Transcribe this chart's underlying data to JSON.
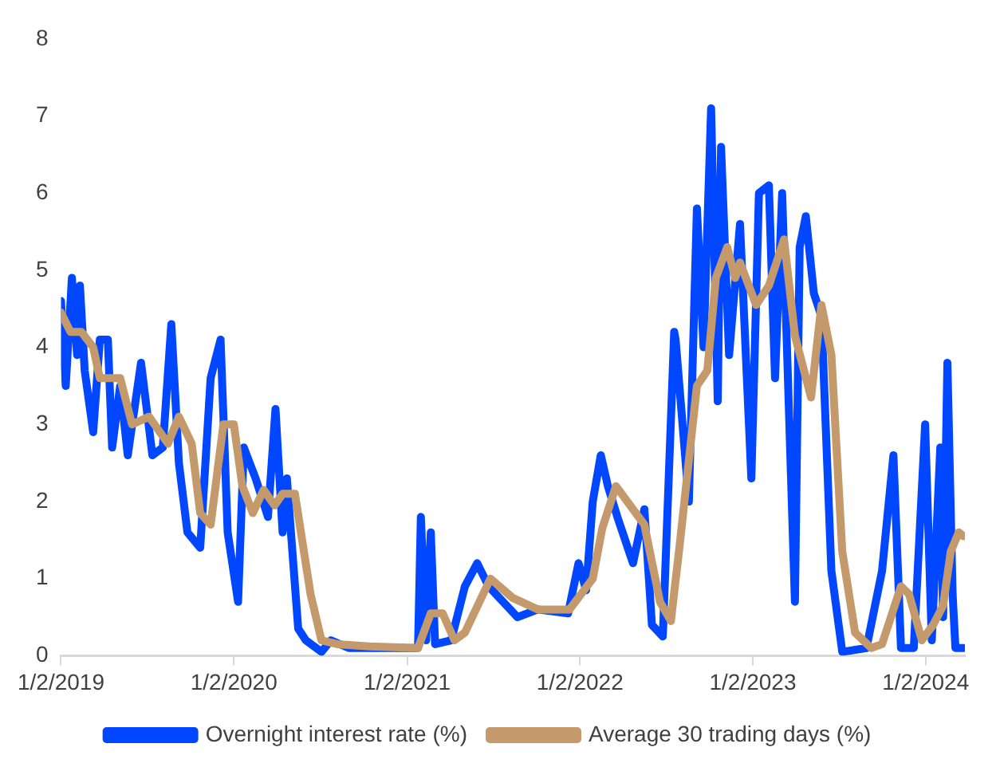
{
  "chart_data": {
    "type": "line",
    "xlim": [
      "2019-01-02",
      "2024-03-25"
    ],
    "xticks": [
      {
        "value": "2019-01-02",
        "label": "1/2/2019"
      },
      {
        "value": "2020-01-02",
        "label": "1/2/2020"
      },
      {
        "value": "2021-01-02",
        "label": "1/2/2021"
      },
      {
        "value": "2022-01-02",
        "label": "1/2/2022"
      },
      {
        "value": "2023-01-02",
        "label": "1/2/2023"
      },
      {
        "value": "2024-01-02",
        "label": "1/2/2024"
      }
    ],
    "ylim": [
      0,
      8
    ],
    "yticks": [
      0,
      1,
      2,
      3,
      4,
      5,
      6,
      7,
      8
    ],
    "grid": false,
    "legend": "bottom",
    "marker": "none",
    "line_style": "solid",
    "series": [
      {
        "name": "Overnight interest rate (%)",
        "color": "#0047ff",
        "x": [
          "2019-01-02",
          "2019-01-12",
          "2019-01-25",
          "2019-02-05",
          "2019-02-11",
          "2019-02-21",
          "2019-03-11",
          "2019-03-25",
          "2019-04-11",
          "2019-04-20",
          "2019-05-07",
          "2019-05-23",
          "2019-06-20",
          "2019-07-14",
          "2019-08-05",
          "2019-08-23",
          "2019-09-08",
          "2019-09-26",
          "2019-10-23",
          "2019-11-14",
          "2019-12-05",
          "2019-12-20",
          "2020-01-11",
          "2020-01-23",
          "2020-02-17",
          "2020-03-14",
          "2020-03-30",
          "2020-04-14",
          "2020-04-23",
          "2020-05-17",
          "2020-06-02",
          "2020-07-05",
          "2020-07-25",
          "2020-09-01",
          "2021-01-25",
          "2021-01-31",
          "2021-02-11",
          "2021-02-21",
          "2021-03-02",
          "2021-04-05",
          "2021-05-04",
          "2021-05-30",
          "2021-06-23",
          "2021-08-23",
          "2021-10-05",
          "2021-12-08",
          "2021-12-30",
          "2022-01-15",
          "2022-01-29",
          "2022-02-15",
          "2022-03-02",
          "2022-03-22",
          "2022-04-24",
          "2022-05-18",
          "2022-06-03",
          "2022-06-26",
          "2022-07-20",
          "2022-07-23",
          "2022-08-20",
          "2022-09-06",
          "2022-09-20",
          "2022-10-06",
          "2022-10-20",
          "2022-10-27",
          "2022-11-13",
          "2022-12-06",
          "2022-12-30",
          "2023-01-15",
          "2023-02-05",
          "2023-02-18",
          "2023-03-05",
          "2023-04-01",
          "2023-04-11",
          "2023-04-24",
          "2023-05-11",
          "2023-05-27",
          "2023-06-17",
          "2023-07-10",
          "2023-08-30",
          "2023-10-02",
          "2023-10-26",
          "2023-11-11",
          "2023-12-08",
          "2024-01-01",
          "2024-01-15",
          "2024-02-02",
          "2024-02-08",
          "2024-02-17",
          "2024-02-28",
          "2024-03-05",
          "2024-03-22"
        ],
        "values": [
          4.6,
          3.5,
          4.9,
          3.9,
          4.8,
          3.7,
          2.9,
          4.1,
          4.1,
          2.7,
          3.5,
          2.6,
          3.8,
          2.6,
          2.7,
          4.3,
          2.5,
          1.6,
          1.4,
          3.6,
          4.1,
          1.6,
          0.7,
          2.7,
          2.3,
          1.8,
          3.2,
          1.6,
          2.3,
          0.35,
          0.2,
          0.05,
          0.2,
          0.1,
          0.1,
          1.8,
          0.2,
          1.6,
          0.15,
          0.2,
          0.9,
          1.2,
          0.9,
          0.5,
          0.6,
          0.55,
          1.2,
          0.85,
          2.0,
          2.6,
          2.2,
          1.8,
          1.2,
          1.9,
          0.4,
          0.25,
          4.2,
          4.1,
          2.0,
          5.8,
          4.0,
          7.1,
          3.3,
          6.6,
          3.9,
          5.6,
          2.3,
          6.0,
          6.1,
          3.6,
          6.0,
          0.7,
          5.3,
          5.7,
          4.7,
          4.4,
          1.1,
          0.05,
          0.1,
          1.1,
          2.6,
          0.1,
          0.1,
          3.0,
          0.2,
          2.7,
          0.5,
          3.8,
          0.8,
          0.1,
          0.1
        ]
      },
      {
        "name": "Average 30 trading days (%)",
        "color": "#c49a6c",
        "x": [
          "2019-01-02",
          "2019-01-22",
          "2019-02-14",
          "2019-03-11",
          "2019-03-25",
          "2019-05-07",
          "2019-06-01",
          "2019-07-07",
          "2019-08-16",
          "2019-09-08",
          "2019-10-05",
          "2019-10-23",
          "2019-11-14",
          "2019-12-11",
          "2020-01-02",
          "2020-01-20",
          "2020-02-11",
          "2020-03-05",
          "2020-03-28",
          "2020-04-14",
          "2020-05-10",
          "2020-06-12",
          "2020-07-05",
          "2020-08-08",
          "2020-10-15",
          "2021-01-25",
          "2021-02-21",
          "2021-03-18",
          "2021-04-12",
          "2021-05-04",
          "2021-06-27",
          "2021-08-13",
          "2021-10-05",
          "2021-12-11",
          "2022-01-29",
          "2022-02-18",
          "2022-03-19",
          "2022-05-18",
          "2022-06-20",
          "2022-07-13",
          "2022-07-31",
          "2022-09-06",
          "2022-09-28",
          "2022-10-16",
          "2022-11-09",
          "2022-11-26",
          "2022-12-06",
          "2023-01-09",
          "2023-02-05",
          "2023-03-09",
          "2023-04-01",
          "2023-05-05",
          "2023-05-27",
          "2023-06-17",
          "2023-07-10",
          "2023-08-06",
          "2023-09-09",
          "2023-10-02",
          "2023-11-11",
          "2023-11-28",
          "2023-12-25",
          "2024-01-18",
          "2024-02-08",
          "2024-02-24",
          "2024-03-12",
          "2024-03-22"
        ],
        "values": [
          4.45,
          4.2,
          4.2,
          4.0,
          3.6,
          3.6,
          3.0,
          3.1,
          2.75,
          3.1,
          2.75,
          1.85,
          1.7,
          3.0,
          3.0,
          2.2,
          1.85,
          2.15,
          1.95,
          2.1,
          2.1,
          0.8,
          0.2,
          0.15,
          0.12,
          0.1,
          0.55,
          0.55,
          0.2,
          0.3,
          1.0,
          0.75,
          0.6,
          0.6,
          1.0,
          1.65,
          2.2,
          1.7,
          0.7,
          0.45,
          1.4,
          3.5,
          3.7,
          4.9,
          5.3,
          4.9,
          5.1,
          4.55,
          4.8,
          5.4,
          4.15,
          3.35,
          4.55,
          3.9,
          1.35,
          0.3,
          0.1,
          0.15,
          0.9,
          0.8,
          0.2,
          0.4,
          0.65,
          1.35,
          1.6,
          1.55
        ]
      }
    ]
  }
}
